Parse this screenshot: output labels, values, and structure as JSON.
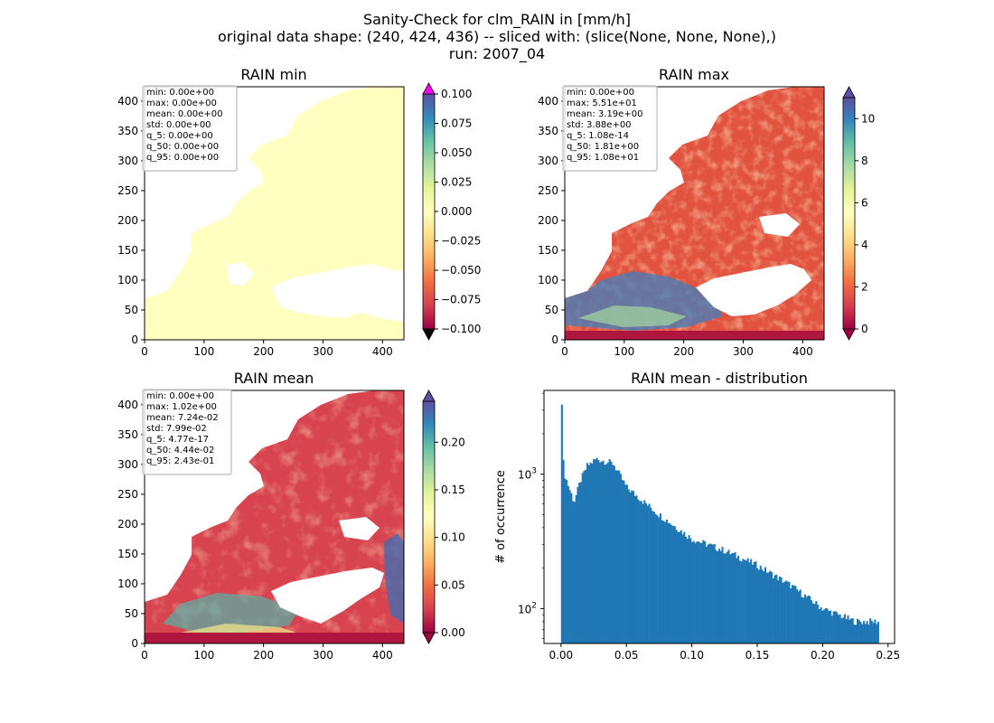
{
  "figure": {
    "title_lines": [
      "Sanity-Check for clm_RAIN in [mm/h]",
      "original data shape: (240, 424, 436) -- sliced with: (slice(None, None, None),)",
      "run: 2007_04"
    ]
  },
  "colors": {
    "colormap": "Spectral",
    "cmap_stops": [
      "#9e0142",
      "#d53e4f",
      "#f46d43",
      "#fdae61",
      "#fee08b",
      "#ffffbf",
      "#e6f598",
      "#abdda4",
      "#66c2a5",
      "#3288bd",
      "#5e4fa2"
    ],
    "cbar_over_min": "#ff00ff",
    "cbar_under_min": "#000000",
    "cbar_ends": "#9e0142 / #5e4fa2",
    "hist_bar": "#1f77b4",
    "stats_box_border": "#bbbbbb"
  },
  "chart_data": [
    {
      "type": "heatmap",
      "title": "RAIN min",
      "xlabel": "",
      "ylabel": "",
      "xlim": [
        0,
        436
      ],
      "ylim": [
        0,
        424
      ],
      "x_ticks": [
        "0",
        "100",
        "200",
        "300",
        "400"
      ],
      "y_ticks": [
        "0",
        "50",
        "100",
        "150",
        "200",
        "250",
        "300",
        "350",
        "400"
      ],
      "colorbar": {
        "range": [
          -0.1,
          0.1
        ],
        "ticks": [
          "0.100",
          "0.075",
          "0.050",
          "0.025",
          "0.000",
          "−0.025",
          "−0.050",
          "−0.075",
          "−0.100"
        ],
        "extend": "both"
      },
      "stats": [
        "min: 0.00e+00",
        "max: 0.00e+00",
        "mean: 0.00e+00",
        "std: 0.00e+00",
        "q_5: 0.00e+00",
        "q_50: 0.00e+00",
        "q_95: 0.00e+00"
      ],
      "field": "uniform 0.0 (whole land/sea area)"
    },
    {
      "type": "heatmap",
      "title": "RAIN max",
      "xlabel": "",
      "ylabel": "",
      "xlim": [
        0,
        436
      ],
      "ylim": [
        0,
        424
      ],
      "x_ticks": [
        "0",
        "100",
        "200",
        "300",
        "400"
      ],
      "y_ticks": [
        "0",
        "50",
        "100",
        "150",
        "200",
        "250",
        "300",
        "350",
        "400"
      ],
      "colorbar": {
        "range": [
          0,
          11
        ],
        "ticks": [
          "10",
          "8",
          "6",
          "4",
          "2",
          "0"
        ],
        "extend": "both"
      },
      "stats": [
        "min: 0.00e+00",
        "max: 5.51e+01",
        "mean: 3.19e+00",
        "std: 3.88e+00",
        "q_5: 1.08e-14",
        "q_50: 1.81e+00",
        "q_95: 1.08e+01"
      ]
    },
    {
      "type": "heatmap",
      "title": "RAIN mean",
      "xlabel": "",
      "ylabel": "",
      "xlim": [
        0,
        436
      ],
      "ylim": [
        0,
        424
      ],
      "x_ticks": [
        "0",
        "100",
        "200",
        "300",
        "400"
      ],
      "y_ticks": [
        "0",
        "50",
        "100",
        "150",
        "200",
        "250",
        "300",
        "350",
        "400"
      ],
      "colorbar": {
        "range": [
          0,
          0.243
        ],
        "ticks": [
          "0.20",
          "0.15",
          "0.10",
          "0.05",
          "0.00"
        ],
        "extend": "both"
      },
      "stats": [
        "min: 0.00e+00",
        "max: 1.02e+00",
        "mean: 7.24e-02",
        "std: 7.99e-02",
        "q_5: 4.77e-17",
        "q_50: 4.44e-02",
        "q_95: 2.43e-01"
      ]
    },
    {
      "type": "bar",
      "title": "RAIN mean - distribution",
      "xlabel": "",
      "ylabel": "# of occurrence",
      "y_scale": "log",
      "xlim": [
        -0.013,
        0.255
      ],
      "ylim": [
        55,
        4200
      ],
      "x_ticks": [
        "0.00",
        "0.05",
        "0.10",
        "0.15",
        "0.20",
        "0.25"
      ],
      "y_ticks": [
        "10",
        "10"
      ],
      "y_tick_exponents": [
        "2",
        "3"
      ],
      "bin_range": [
        0,
        0.243
      ],
      "bins": 200,
      "shape": {
        "first_bin": 3600,
        "dip_near": [
          0.01,
          620
        ],
        "second_peak": [
          0.027,
          1300
        ],
        "plateau_0_05": 800,
        "at_0_10": 330,
        "at_0_15": 210,
        "at_0_20": 100,
        "last_bin": 80
      }
    }
  ]
}
